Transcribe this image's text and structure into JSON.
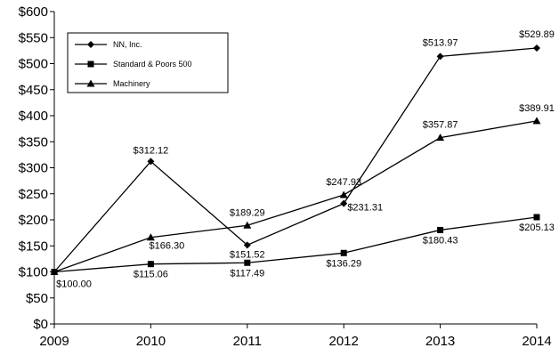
{
  "chart_data": {
    "type": "line",
    "title": "",
    "xlabel": "",
    "ylabel": "",
    "categories": [
      "2009",
      "2010",
      "2011",
      "2012",
      "2013",
      "2014"
    ],
    "ylim": [
      0,
      600
    ],
    "yticks": [
      0,
      50,
      100,
      150,
      200,
      250,
      300,
      350,
      400,
      450,
      500,
      550,
      600
    ],
    "ytick_labels": [
      "$0",
      "$50",
      "$100",
      "$150",
      "$200",
      "$250",
      "$300",
      "$350",
      "$400",
      "$450",
      "$500",
      "$550",
      "$600"
    ],
    "grid": false,
    "legend_position": "top-left",
    "series": [
      {
        "name": "NN, Inc.",
        "marker": "diamond",
        "values": [
          100.0,
          312.12,
          151.52,
          231.31,
          513.97,
          529.89
        ],
        "labels": [
          "$100.00",
          "$312.12",
          "$151.52",
          "$231.31",
          "$513.97",
          "$529.89"
        ]
      },
      {
        "name": "Standard & Poors 500",
        "marker": "square",
        "values": [
          100.0,
          115.06,
          117.49,
          136.29,
          180.43,
          205.13
        ],
        "labels": [
          "",
          "$115.06",
          "$117.49",
          "$136.29",
          "$180.43",
          "$205.13"
        ]
      },
      {
        "name": "Machinery",
        "marker": "triangle",
        "values": [
          100.0,
          166.3,
          189.29,
          247.93,
          357.87,
          389.91
        ],
        "labels": [
          "",
          "$166.30",
          "$189.29",
          "$247.93",
          "$357.87",
          "$389.91"
        ]
      }
    ],
    "colors": {
      "line": "#000000",
      "background": "#ffffff"
    }
  }
}
